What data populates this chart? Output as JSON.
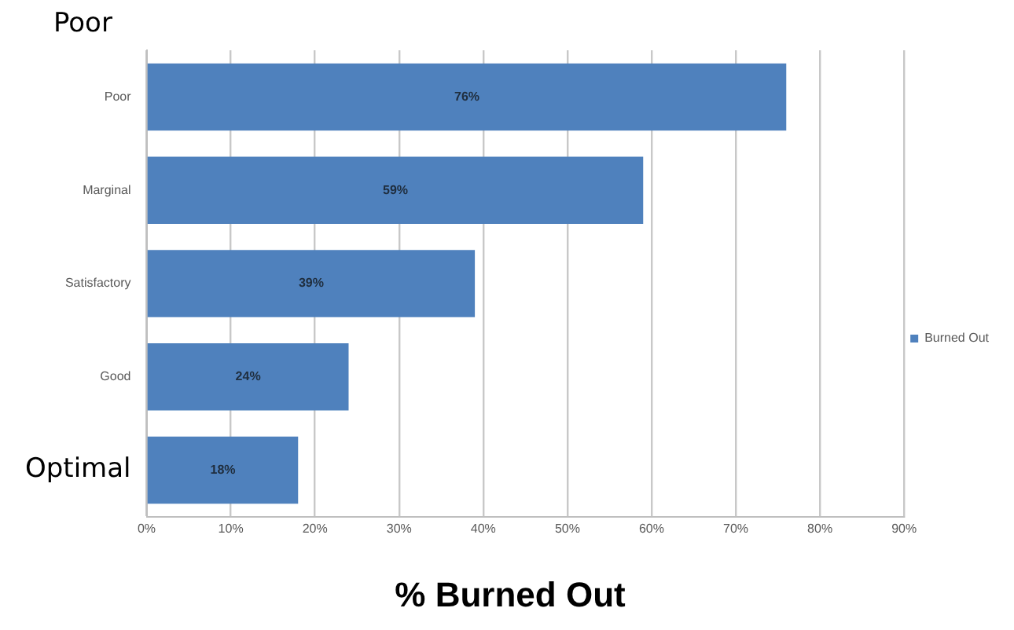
{
  "chart_data": {
    "type": "bar",
    "orientation": "horizontal",
    "title": "% Burned Out",
    "annotations": [
      "Poor"
    ],
    "categories": [
      "Poor",
      "Marginal",
      "Satisfactory",
      "Good",
      "Optimal"
    ],
    "series": [
      {
        "name": "Burned Out",
        "color": "#4f81bd",
        "values": [
          76,
          59,
          39,
          24,
          18
        ],
        "value_labels": [
          "76%",
          "59%",
          "39%",
          "24%",
          "18%"
        ]
      }
    ],
    "xlim": [
      0,
      90
    ],
    "xticks": [
      {
        "value": 0,
        "label": "0%"
      },
      {
        "value": 10,
        "label": "10%"
      },
      {
        "value": 20,
        "label": "20%"
      },
      {
        "value": 30,
        "label": "30%"
      },
      {
        "value": 40,
        "label": "40%"
      },
      {
        "value": 50,
        "label": "50%"
      },
      {
        "value": 60,
        "label": "60%"
      },
      {
        "value": 70,
        "label": "70%"
      },
      {
        "value": 80,
        "label": "80%"
      },
      {
        "value": 90,
        "label": "90%"
      }
    ],
    "grid": "x",
    "legend": "right"
  }
}
